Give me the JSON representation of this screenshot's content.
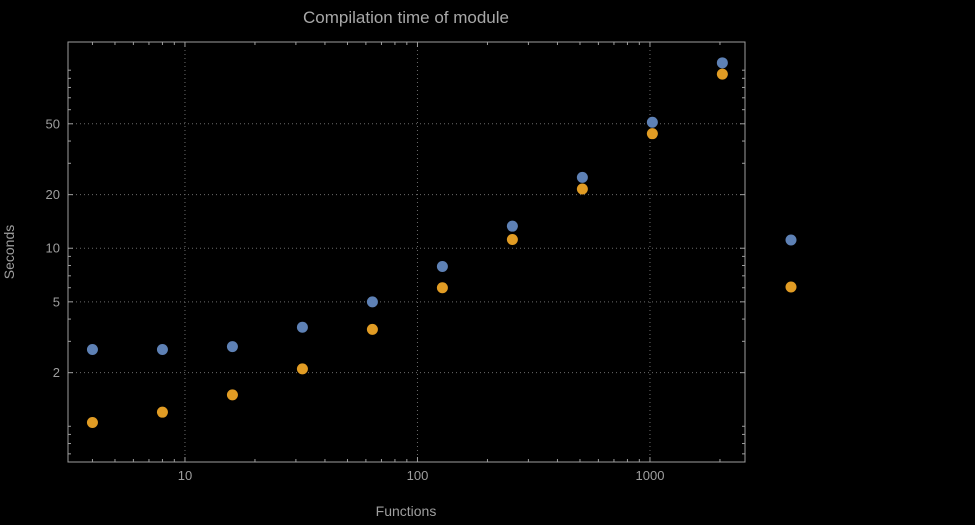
{
  "palette": {
    "background": "#000000",
    "frame": "#9e9e9e",
    "grid": "#6b6b6b",
    "text": "#9e9e9e",
    "title_text": "#a8a8a8",
    "series1": "#5e81b5",
    "series2": "#e19c24"
  },
  "chart_data": {
    "type": "scatter",
    "title": "Compilation time of module",
    "xlabel": "Functions",
    "ylabel": "Seconds",
    "x_scale": "log",
    "y_scale": "log",
    "grid": true,
    "grid_style": "dotted",
    "x_ticks": [
      10,
      100,
      1000
    ],
    "y_ticks": [
      2,
      5,
      10,
      20,
      50
    ],
    "xlim": [
      3.14,
      2563
    ],
    "ylim": [
      0.63,
      144
    ],
    "x": [
      4,
      8,
      16,
      32,
      64,
      128,
      256,
      512,
      1024,
      2048
    ],
    "series": [
      {
        "name": "series-1",
        "color": "#5e81b5",
        "values": [
          2.7,
          2.7,
          2.8,
          3.6,
          5.0,
          7.9,
          13.3,
          25,
          51,
          110
        ]
      },
      {
        "name": "series-2",
        "color": "#e19c24",
        "values": [
          1.05,
          1.2,
          1.5,
          2.1,
          3.5,
          6.0,
          11.2,
          21.5,
          44,
          95
        ]
      }
    ],
    "legend_position": "right"
  },
  "legend": {
    "markers": [
      {
        "series": "series-1",
        "color": "#5e81b5"
      },
      {
        "series": "series-2",
        "color": "#e19c24"
      }
    ]
  }
}
